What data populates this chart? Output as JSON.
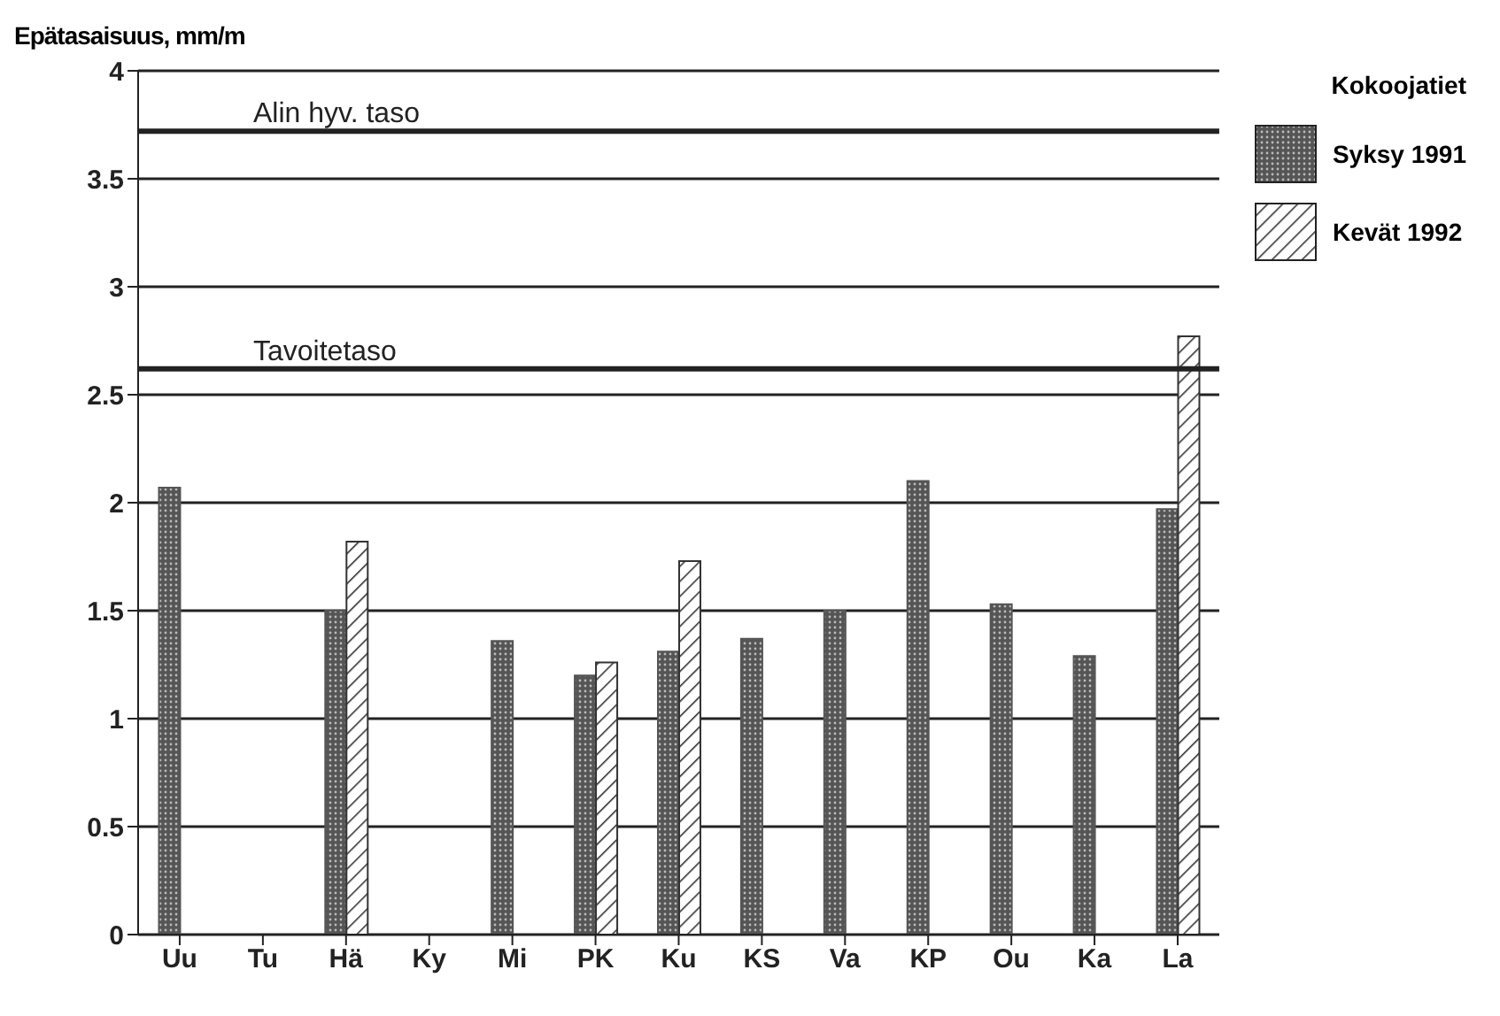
{
  "chart_data": {
    "type": "bar",
    "ylabel": "Epätasaisuus, mm/m",
    "legend_title": "Kokoojatiet",
    "categories": [
      "Uu",
      "Tu",
      "Hä",
      "Ky",
      "Mi",
      "PK",
      "Ku",
      "KS",
      "Va",
      "KP",
      "Ou",
      "Ka",
      "La"
    ],
    "series": [
      {
        "name": "Syksy 1991",
        "color": "#555555",
        "values": [
          2.07,
          null,
          1.5,
          null,
          1.36,
          1.2,
          1.31,
          1.37,
          1.5,
          2.1,
          1.53,
          1.29,
          1.97
        ]
      },
      {
        "name": "Kevät 1992",
        "color": "#333333",
        "values": [
          null,
          null,
          1.82,
          null,
          null,
          1.26,
          1.73,
          null,
          null,
          null,
          null,
          null,
          2.77
        ]
      }
    ],
    "ylim": [
      0,
      4
    ],
    "yticks": [
      0,
      0.5,
      1,
      1.5,
      2,
      2.5,
      3,
      3.5,
      4
    ],
    "grid": "y",
    "legend": "top right",
    "ref_lines": [
      {
        "axis": "y",
        "value": 3.72,
        "label": "Alin hyv. taso"
      },
      {
        "axis": "y",
        "value": 2.62,
        "label": "Tavoitetaso"
      }
    ]
  }
}
